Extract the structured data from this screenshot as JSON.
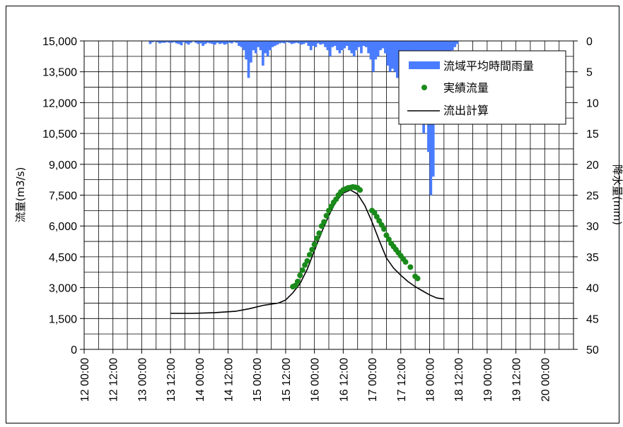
{
  "chart_data": {
    "type": "line",
    "x_unit": "date-hour (day HH:MM, hours since day 12 00:00)",
    "x_ticks": [
      "12 00:00",
      "12 12:00",
      "13 00:00",
      "13 12:00",
      "14 00:00",
      "14 12:00",
      "15 00:00",
      "15 12:00",
      "16 00:00",
      "16 12:00",
      "17 00:00",
      "17 12:00",
      "18 00:00",
      "18 12:00",
      "19 00:00",
      "19 12:00",
      "20 00:00"
    ],
    "ylabel_left": "流量(m3/s)",
    "ylabel_right": "降水量(mm)",
    "y_left_ticks": [
      "0",
      "1,500",
      "3,000",
      "4,500",
      "6,000",
      "7,500",
      "9,000",
      "10,500",
      "12,000",
      "13,500",
      "15,000"
    ],
    "y_right_ticks": [
      "0",
      "5",
      "10",
      "15",
      "20",
      "25",
      "30",
      "35",
      "40",
      "45",
      "50"
    ],
    "ylim_left": [
      0,
      15000
    ],
    "ylim_right_inverted": [
      0,
      50
    ],
    "grid": true,
    "legend_position": "top-right",
    "colors": {
      "rain": "#4a7cff",
      "observed": "#1a8a1a",
      "computed": "#000000"
    },
    "series": [
      {
        "name": "流域平均時間雨量",
        "kind": "bar-right-axis-inverted",
        "start_hour": 27,
        "values": [
          0.5,
          0.2,
          0.1,
          0.2,
          0.4,
          0.3,
          0.3,
          0.2,
          0.3,
          0.3,
          0.2,
          0.4,
          0.5,
          0.7,
          0.2,
          0.4,
          0.6,
          0.3,
          0.1,
          0.3,
          0.5,
          0.4,
          0.8,
          0.5,
          0.3,
          0.4,
          0.5,
          0.6,
          0.3,
          0.5,
          0.4,
          0.6,
          0.5,
          0.3,
          0.4,
          0.2,
          0.3,
          0.8,
          1,
          1.5,
          3,
          6,
          3.5,
          1.5,
          2,
          1,
          1.5,
          4,
          2,
          2.5,
          1.5,
          1,
          0.8,
          0.6,
          0.4,
          0.3,
          0.4,
          0.2,
          0.3,
          0.5,
          0.4,
          0.3,
          0.4,
          0.6,
          0.5,
          0.3,
          0.8,
          1.5,
          0.8,
          1,
          0.4,
          0.6,
          0.5,
          1,
          1.5,
          2.5,
          1,
          0.8,
          1.5,
          2,
          1.5,
          1.2,
          0.8,
          1.5,
          2,
          2.5,
          1.5,
          1,
          2,
          0.8,
          1,
          2,
          3,
          5,
          3,
          2.5,
          1.5,
          1.2,
          2,
          4,
          5,
          4.5,
          5,
          6,
          4,
          3,
          5,
          4.5,
          6.5,
          5,
          6,
          9,
          7,
          9.5,
          15,
          12,
          18,
          25,
          22,
          10,
          6,
          4,
          3,
          3,
          2,
          2,
          1.5,
          1,
          0.5
        ]
      },
      {
        "name": "実績流量",
        "kind": "scatter",
        "x": [
          87,
          88,
          89,
          90,
          91,
          92,
          93,
          94,
          95,
          96,
          97,
          98,
          99,
          100,
          101,
          102,
          103,
          104,
          105,
          106,
          107,
          108,
          109,
          110,
          111,
          112,
          113,
          114,
          115,
          120,
          121,
          122,
          123,
          124,
          125,
          126,
          127,
          128,
          129,
          130,
          131,
          132,
          133,
          134,
          136,
          138,
          139
        ],
        "y": [
          3050,
          3100,
          3300,
          3600,
          3850,
          4100,
          4300,
          4600,
          4850,
          5100,
          5400,
          5650,
          6000,
          6200,
          6500,
          6750,
          6950,
          7150,
          7300,
          7500,
          7650,
          7750,
          7800,
          7850,
          7870,
          7900,
          7880,
          7850,
          7750,
          6750,
          6650,
          6450,
          6250,
          6050,
          5850,
          5550,
          5350,
          5150,
          5000,
          4850,
          4700,
          4550,
          4400,
          4250,
          4000,
          3550,
          3450
        ]
      },
      {
        "name": "流出計算",
        "kind": "line",
        "x": [
          36,
          45,
          54,
          63,
          69,
          75,
          81,
          84,
          87,
          90,
          93,
          96,
          99,
          102,
          105,
          108,
          111,
          114,
          117,
          120,
          123,
          126,
          129,
          132,
          135,
          138,
          141,
          144,
          147,
          150
        ],
        "y": [
          1750,
          1750,
          1780,
          1850,
          1980,
          2150,
          2250,
          2400,
          2750,
          3200,
          3900,
          4800,
          5700,
          6500,
          7200,
          7600,
          7750,
          7550,
          7000,
          6200,
          5300,
          4450,
          3950,
          3600,
          3300,
          3050,
          2850,
          2650,
          2500,
          2450
        ]
      }
    ]
  }
}
